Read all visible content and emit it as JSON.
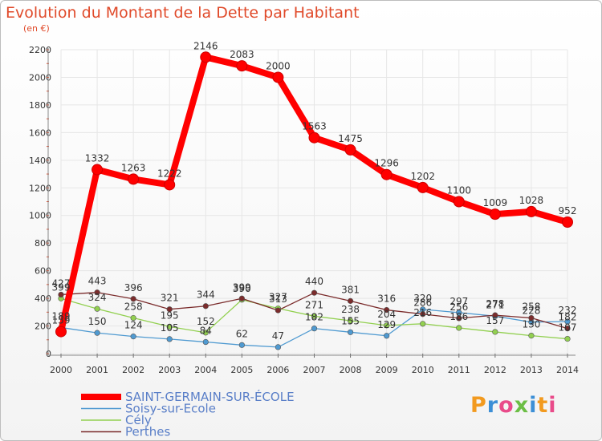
{
  "title": "Evolution du Montant de la Dette par Habitant",
  "unit_label": "(en €)",
  "brand": "Proxiti",
  "chart_data": {
    "type": "line",
    "x": [
      "2000",
      "2001",
      "2002",
      "2003",
      "2004",
      "2005",
      "2006",
      "2007",
      "2008",
      "2009",
      "2010",
      "2011",
      "2012",
      "2013",
      "2014"
    ],
    "ylim": [
      0,
      2200
    ],
    "yticks": [
      0,
      200,
      400,
      600,
      800,
      1000,
      1200,
      1400,
      1600,
      1800,
      2000,
      2200
    ],
    "grid": true,
    "legend_placement": "bottom-left",
    "series": [
      {
        "name": "SAINT-GERMAIN-SUR-ÉCOLE",
        "color": "#ff0000",
        "values": [
          159,
          1332,
          1263,
          1222,
          2146,
          2083,
          2000,
          1563,
          1475,
          1296,
          1202,
          1100,
          1009,
          1028,
          952
        ]
      },
      {
        "name": "Soisy-sur-Ecole",
        "color": "#4f9ad1",
        "values": [
          189,
          150,
          124,
          105,
          84,
          62,
          47,
          182,
          155,
          129,
          320,
          297,
          271,
          228,
          232
        ]
      },
      {
        "name": "Cély",
        "color": "#92d050",
        "values": [
          399,
          324,
          258,
          195,
          152,
          390,
          327,
          271,
          238,
          204,
          216,
          186,
          157,
          130,
          107
        ]
      },
      {
        "name": "Perthes",
        "color": "#7b2c2c",
        "values": [
          427,
          443,
          396,
          321,
          344,
          399,
          313,
          440,
          381,
          316,
          286,
          256,
          278,
          258,
          182
        ]
      }
    ]
  }
}
